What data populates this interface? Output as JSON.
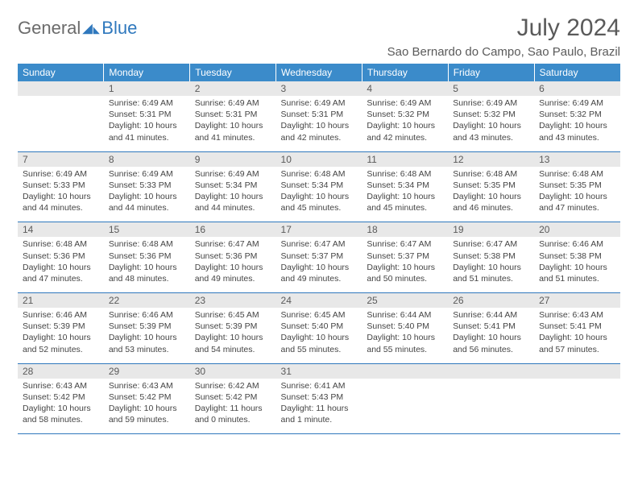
{
  "logo": {
    "part1": "General",
    "part2": "Blue"
  },
  "title": "July 2024",
  "location": "Sao Bernardo do Campo, Sao Paulo, Brazil",
  "headers": [
    "Sunday",
    "Monday",
    "Tuesday",
    "Wednesday",
    "Thursday",
    "Friday",
    "Saturday"
  ],
  "header_bg": "#3b8bca",
  "daynum_bg": "#e8e8e8",
  "border_color": "#2f78bd",
  "weeks": [
    {
      "nums": [
        "",
        "1",
        "2",
        "3",
        "4",
        "5",
        "6"
      ],
      "cells": [
        "",
        "Sunrise: 6:49 AM\nSunset: 5:31 PM\nDaylight: 10 hours and 41 minutes.",
        "Sunrise: 6:49 AM\nSunset: 5:31 PM\nDaylight: 10 hours and 41 minutes.",
        "Sunrise: 6:49 AM\nSunset: 5:31 PM\nDaylight: 10 hours and 42 minutes.",
        "Sunrise: 6:49 AM\nSunset: 5:32 PM\nDaylight: 10 hours and 42 minutes.",
        "Sunrise: 6:49 AM\nSunset: 5:32 PM\nDaylight: 10 hours and 43 minutes.",
        "Sunrise: 6:49 AM\nSunset: 5:32 PM\nDaylight: 10 hours and 43 minutes."
      ]
    },
    {
      "nums": [
        "7",
        "8",
        "9",
        "10",
        "11",
        "12",
        "13"
      ],
      "cells": [
        "Sunrise: 6:49 AM\nSunset: 5:33 PM\nDaylight: 10 hours and 44 minutes.",
        "Sunrise: 6:49 AM\nSunset: 5:33 PM\nDaylight: 10 hours and 44 minutes.",
        "Sunrise: 6:49 AM\nSunset: 5:34 PM\nDaylight: 10 hours and 44 minutes.",
        "Sunrise: 6:48 AM\nSunset: 5:34 PM\nDaylight: 10 hours and 45 minutes.",
        "Sunrise: 6:48 AM\nSunset: 5:34 PM\nDaylight: 10 hours and 45 minutes.",
        "Sunrise: 6:48 AM\nSunset: 5:35 PM\nDaylight: 10 hours and 46 minutes.",
        "Sunrise: 6:48 AM\nSunset: 5:35 PM\nDaylight: 10 hours and 47 minutes."
      ]
    },
    {
      "nums": [
        "14",
        "15",
        "16",
        "17",
        "18",
        "19",
        "20"
      ],
      "cells": [
        "Sunrise: 6:48 AM\nSunset: 5:36 PM\nDaylight: 10 hours and 47 minutes.",
        "Sunrise: 6:48 AM\nSunset: 5:36 PM\nDaylight: 10 hours and 48 minutes.",
        "Sunrise: 6:47 AM\nSunset: 5:36 PM\nDaylight: 10 hours and 49 minutes.",
        "Sunrise: 6:47 AM\nSunset: 5:37 PM\nDaylight: 10 hours and 49 minutes.",
        "Sunrise: 6:47 AM\nSunset: 5:37 PM\nDaylight: 10 hours and 50 minutes.",
        "Sunrise: 6:47 AM\nSunset: 5:38 PM\nDaylight: 10 hours and 51 minutes.",
        "Sunrise: 6:46 AM\nSunset: 5:38 PM\nDaylight: 10 hours and 51 minutes."
      ]
    },
    {
      "nums": [
        "21",
        "22",
        "23",
        "24",
        "25",
        "26",
        "27"
      ],
      "cells": [
        "Sunrise: 6:46 AM\nSunset: 5:39 PM\nDaylight: 10 hours and 52 minutes.",
        "Sunrise: 6:46 AM\nSunset: 5:39 PM\nDaylight: 10 hours and 53 minutes.",
        "Sunrise: 6:45 AM\nSunset: 5:39 PM\nDaylight: 10 hours and 54 minutes.",
        "Sunrise: 6:45 AM\nSunset: 5:40 PM\nDaylight: 10 hours and 55 minutes.",
        "Sunrise: 6:44 AM\nSunset: 5:40 PM\nDaylight: 10 hours and 55 minutes.",
        "Sunrise: 6:44 AM\nSunset: 5:41 PM\nDaylight: 10 hours and 56 minutes.",
        "Sunrise: 6:43 AM\nSunset: 5:41 PM\nDaylight: 10 hours and 57 minutes."
      ]
    },
    {
      "nums": [
        "28",
        "29",
        "30",
        "31",
        "",
        "",
        ""
      ],
      "cells": [
        "Sunrise: 6:43 AM\nSunset: 5:42 PM\nDaylight: 10 hours and 58 minutes.",
        "Sunrise: 6:43 AM\nSunset: 5:42 PM\nDaylight: 10 hours and 59 minutes.",
        "Sunrise: 6:42 AM\nSunset: 5:42 PM\nDaylight: 11 hours and 0 minutes.",
        "Sunrise: 6:41 AM\nSunset: 5:43 PM\nDaylight: 11 hours and 1 minute.",
        "",
        "",
        ""
      ]
    }
  ]
}
